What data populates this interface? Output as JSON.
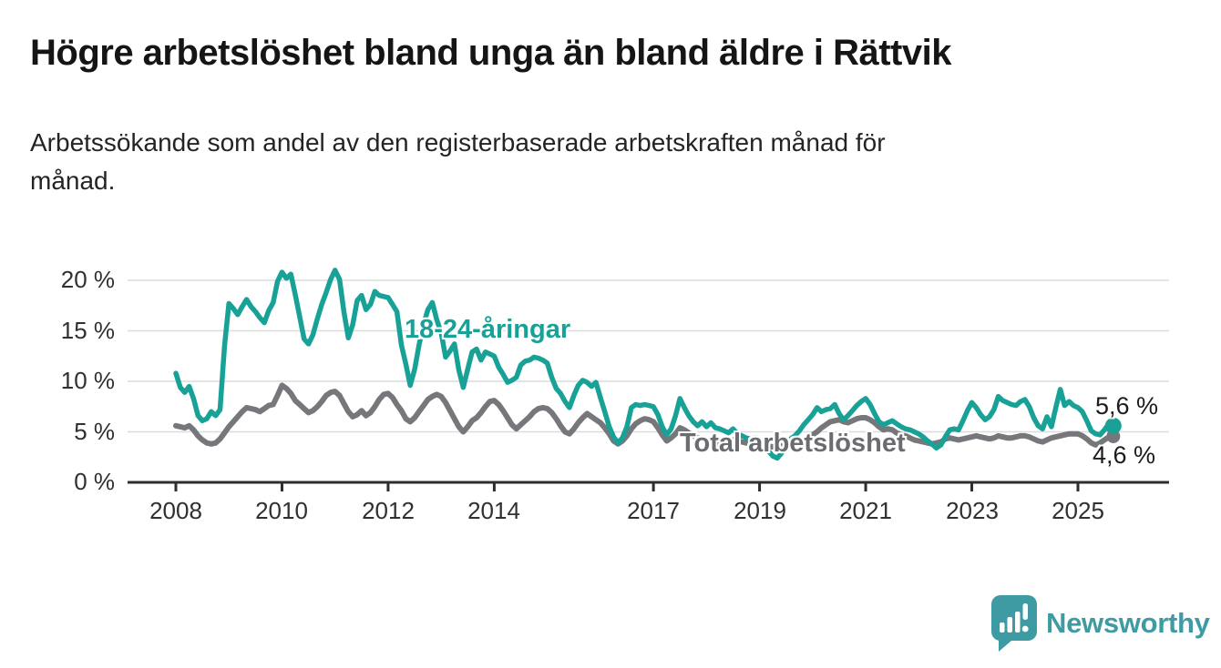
{
  "header": {
    "title": "Högre arbetslöshet bland unga än bland äldre i Rättvik",
    "subtitle": "Arbetssökande som andel av den registerbaserade arbetskraften månad för månad."
  },
  "chart_data": {
    "type": "line",
    "unit": "%",
    "frequency": "monthly",
    "x_start": "2008-01",
    "x_end": "2025-09",
    "grid": "horizontal",
    "x_tick_years": [
      2008,
      2010,
      2012,
      2014,
      2017,
      2019,
      2021,
      2023,
      2025
    ],
    "x_tick_labels": [
      "2008",
      "2010",
      "2012",
      "2014",
      "2017",
      "2019",
      "2021",
      "2023",
      "2025"
    ],
    "y_ticks": [
      0,
      5,
      10,
      15,
      20
    ],
    "y_tick_labels": [
      "0 %",
      "5 %",
      "10 %",
      "15 %",
      "20 %"
    ],
    "ylim": [
      0,
      21.5
    ],
    "colors": {
      "youth_line": "#18a196",
      "total_line": "#76777a",
      "total_label": "#6b6c70",
      "gridline": "#dcdcdc",
      "axis": "#2e2e2e",
      "axis_text": "#303030",
      "end_label_text": "#1c1c1c"
    },
    "series": [
      {
        "name": "18-24-åringar",
        "color": "#18a196",
        "end_label": "5,6 %",
        "end_value": 5.6,
        "values": [
          10.8,
          9.4,
          8.9,
          9.5,
          8.3,
          6.6,
          6.1,
          6.3,
          7.0,
          6.6,
          7.2,
          13.5,
          17.7,
          17.2,
          16.6,
          17.4,
          18.1,
          17.4,
          16.9,
          16.3,
          15.8,
          17.0,
          17.8,
          19.9,
          20.8,
          20.2,
          20.6,
          18.6,
          16.4,
          14.2,
          13.7,
          14.6,
          16.2,
          17.6,
          18.8,
          20.1,
          21.0,
          20.1,
          16.9,
          14.3,
          15.6,
          18.0,
          18.5,
          17.1,
          17.6,
          18.9,
          18.5,
          18.4,
          18.3,
          17.6,
          16.9,
          13.6,
          11.7,
          9.6,
          11.2,
          13.6,
          15.6,
          17.1,
          17.8,
          16.1,
          14.8,
          12.4,
          13.0,
          13.7,
          11.1,
          9.4,
          11.2,
          12.9,
          13.2,
          12.1,
          12.9,
          12.7,
          12.5,
          11.4,
          10.7,
          9.9,
          10.1,
          10.4,
          11.6,
          12.0,
          12.1,
          12.4,
          12.3,
          12.1,
          11.8,
          10.4,
          9.3,
          8.8,
          8.0,
          7.4,
          8.6,
          9.6,
          10.1,
          9.9,
          9.5,
          9.9,
          8.4,
          7.0,
          5.5,
          4.5,
          3.9,
          4.4,
          5.5,
          7.4,
          7.7,
          7.6,
          7.7,
          7.6,
          7.5,
          6.7,
          5.5,
          4.7,
          5.3,
          6.6,
          8.3,
          7.4,
          6.6,
          6.0,
          5.6,
          6.0,
          5.5,
          5.9,
          5.4,
          5.3,
          5.1,
          4.9,
          5.3,
          4.8,
          4.6,
          4.4,
          4.3,
          4.4,
          4.3,
          3.8,
          3.1,
          2.6,
          2.4,
          2.9,
          3.7,
          4.3,
          4.6,
          5.1,
          5.7,
          6.2,
          6.7,
          7.4,
          7.0,
          7.2,
          7.3,
          7.7,
          6.8,
          6.2,
          6.6,
          7.1,
          7.6,
          8.0,
          8.3,
          7.7,
          6.8,
          6.0,
          5.7,
          5.9,
          6.1,
          5.8,
          5.5,
          5.3,
          5.2,
          5.0,
          4.8,
          4.5,
          4.1,
          3.8,
          3.4,
          3.7,
          4.5,
          5.2,
          5.3,
          5.2,
          6.1,
          7.1,
          7.9,
          7.4,
          6.7,
          6.2,
          6.5,
          7.2,
          8.5,
          8.1,
          7.9,
          7.7,
          7.6,
          8.0,
          8.2,
          7.5,
          6.4,
          5.6,
          5.3,
          6.5,
          5.5,
          7.4,
          9.2,
          7.6,
          8.0,
          7.6,
          7.4,
          7.0,
          6.1,
          5.1,
          4.8,
          4.7,
          5.2,
          5.8,
          5.6
        ]
      },
      {
        "name": "Total arbetslöshet",
        "color": "#76777a",
        "end_label": "4,6 %",
        "end_value": 4.6,
        "values": [
          5.6,
          5.5,
          5.4,
          5.6,
          5.2,
          4.6,
          4.2,
          3.9,
          3.8,
          3.9,
          4.3,
          4.9,
          5.5,
          6.0,
          6.5,
          7.0,
          7.4,
          7.3,
          7.2,
          7.0,
          7.3,
          7.6,
          7.7,
          8.6,
          9.6,
          9.3,
          8.8,
          8.1,
          7.7,
          7.3,
          6.9,
          7.1,
          7.5,
          8.0,
          8.6,
          8.9,
          9.0,
          8.6,
          7.8,
          7.0,
          6.5,
          6.7,
          7.1,
          6.6,
          6.9,
          7.5,
          8.2,
          8.7,
          8.8,
          8.4,
          7.7,
          7.1,
          6.3,
          6.0,
          6.4,
          7.0,
          7.6,
          8.2,
          8.5,
          8.7,
          8.5,
          7.9,
          7.1,
          6.3,
          5.5,
          5.0,
          5.5,
          6.1,
          6.4,
          6.9,
          7.5,
          8.0,
          8.1,
          7.7,
          7.1,
          6.4,
          5.7,
          5.3,
          5.7,
          6.1,
          6.5,
          7.0,
          7.3,
          7.4,
          7.3,
          6.9,
          6.3,
          5.6,
          5.0,
          4.8,
          5.3,
          5.9,
          6.4,
          6.8,
          6.5,
          6.2,
          5.9,
          5.4,
          4.8,
          4.1,
          3.8,
          4.1,
          4.6,
          5.3,
          5.8,
          6.1,
          6.3,
          6.2,
          6.0,
          5.4,
          4.7,
          4.1,
          4.4,
          4.8,
          5.4,
          5.2,
          4.9,
          4.6,
          4.4,
          4.3,
          4.2,
          4.0,
          3.8,
          3.6,
          3.7,
          3.9,
          4.2,
          4.1,
          4.0,
          3.9,
          3.9,
          4.0,
          4.0,
          3.8,
          3.6,
          3.5,
          3.6,
          3.8,
          4.1,
          4.0,
          4.0,
          4.1,
          4.3,
          4.5,
          4.7,
          5.0,
          5.4,
          5.7,
          6.0,
          6.1,
          6.2,
          6.0,
          5.9,
          6.1,
          6.3,
          6.4,
          6.4,
          6.2,
          5.9,
          5.5,
          5.2,
          5.3,
          5.2,
          4.9,
          4.7,
          4.6,
          4.4,
          4.2,
          4.1,
          4.0,
          3.9,
          3.8,
          3.9,
          4.0,
          4.3,
          4.4,
          4.3,
          4.2,
          4.3,
          4.4,
          4.5,
          4.6,
          4.5,
          4.4,
          4.3,
          4.4,
          4.6,
          4.5,
          4.4,
          4.4,
          4.5,
          4.6,
          4.6,
          4.5,
          4.3,
          4.1,
          4.0,
          4.2,
          4.4,
          4.5,
          4.6,
          4.7,
          4.8,
          4.8,
          4.8,
          4.6,
          4.3,
          3.9,
          3.7,
          3.9,
          4.2,
          4.5,
          4.6
        ]
      }
    ]
  },
  "branding": {
    "name": "Newsworthy",
    "color": "#3f9ba3"
  }
}
